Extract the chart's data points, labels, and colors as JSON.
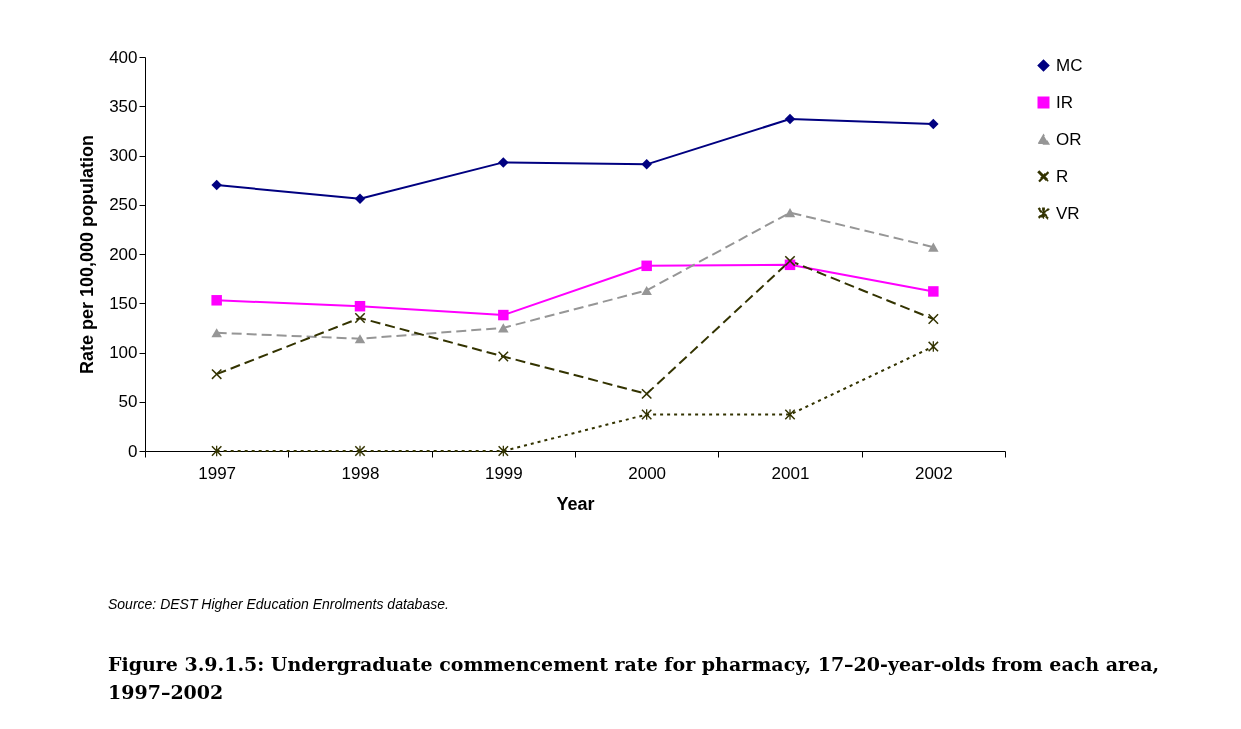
{
  "chart_data": {
    "type": "line",
    "title": "Figure 3.9.1.5: Undergraduate commencement rate for pharmacy, 17–20-year-olds from each area, 1997–2002",
    "xlabel": "Year",
    "ylabel": "Rate per 100,000 population",
    "categories": [
      "1997",
      "1998",
      "1999",
      "2000",
      "2001",
      "2002"
    ],
    "series": [
      {
        "name": "MC",
        "color": "#000080",
        "marker": "diamond",
        "line_style": "solid",
        "values": [
          270,
          256,
          293,
          291,
          337,
          332
        ]
      },
      {
        "name": "IR",
        "color": "#ff00ff",
        "marker": "square",
        "line_style": "solid",
        "values": [
          153,
          147,
          138,
          188,
          189,
          162
        ]
      },
      {
        "name": "OR",
        "color": "#969696",
        "marker": "triangle",
        "line_style": "dashed",
        "values": [
          120,
          114,
          125,
          163,
          242,
          207
        ]
      },
      {
        "name": "R",
        "color": "#333300",
        "marker": "cross",
        "line_style": "dashed",
        "values": [
          78,
          135,
          96,
          58,
          193,
          134
        ]
      },
      {
        "name": "VR",
        "color": "#333300",
        "marker": "star",
        "line_style": "dotted",
        "values": [
          0,
          0,
          0,
          37,
          37,
          106
        ]
      }
    ],
    "ylim": [
      0,
      400
    ],
    "yticks": [
      0,
      50,
      100,
      150,
      200,
      250,
      300,
      350,
      400
    ],
    "grid": false,
    "legend": "right",
    "annotations": [
      "Source: DEST Higher Education Enrolments database."
    ]
  }
}
